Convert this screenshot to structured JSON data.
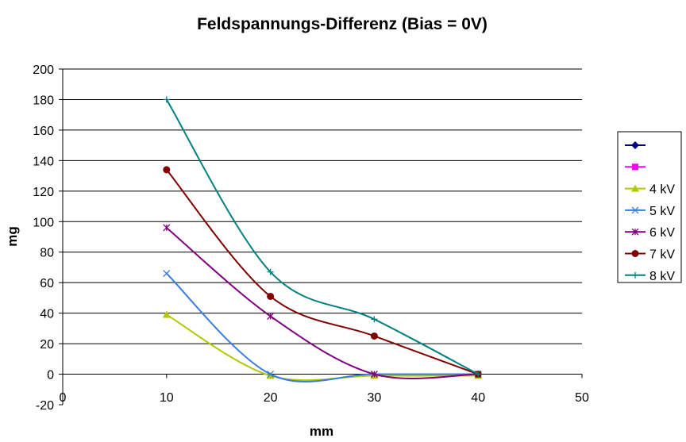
{
  "chart_data": {
    "type": "line",
    "title": "Feldspannungs-Differenz (Bias = 0V)",
    "xlabel": "mm",
    "ylabel": "mg",
    "xlim": [
      0,
      50
    ],
    "ylim": [
      -20,
      200
    ],
    "x_ticks": [
      "0",
      "10",
      "20",
      "30",
      "40",
      "50"
    ],
    "y_ticks": [
      "-20",
      "0",
      "20",
      "40",
      "60",
      "80",
      "100",
      "120",
      "140",
      "160",
      "180",
      "200"
    ],
    "grid": "horizontal",
    "legend_position": "right",
    "series": [
      {
        "name": "",
        "color": "#000080",
        "marker": "diamond",
        "points": []
      },
      {
        "name": "",
        "color": "#ff00ff",
        "marker": "square",
        "points": []
      },
      {
        "name": "4 kV",
        "color": "#b3c800",
        "marker": "triangle",
        "points": [
          [
            10,
            39
          ],
          [
            20,
            -1
          ],
          [
            30,
            -1
          ],
          [
            40,
            -1
          ]
        ]
      },
      {
        "name": "5 kV",
        "color": "#3a7ddc",
        "marker": "x",
        "points": [
          [
            10,
            66
          ],
          [
            20,
            0
          ],
          [
            30,
            0
          ],
          [
            40,
            0
          ]
        ]
      },
      {
        "name": "6 kV",
        "color": "#800080",
        "marker": "star",
        "points": [
          [
            10,
            96
          ],
          [
            20,
            38
          ],
          [
            30,
            0
          ],
          [
            40,
            0
          ]
        ]
      },
      {
        "name": "7 kV",
        "color": "#800000",
        "marker": "circle",
        "points": [
          [
            10,
            134
          ],
          [
            20,
            51
          ],
          [
            30,
            25
          ],
          [
            40,
            0
          ]
        ]
      },
      {
        "name": "8 kV",
        "color": "#008080",
        "marker": "plus",
        "points": [
          [
            10,
            180
          ],
          [
            20,
            67
          ],
          [
            30,
            36
          ],
          [
            40,
            0
          ]
        ]
      }
    ]
  }
}
